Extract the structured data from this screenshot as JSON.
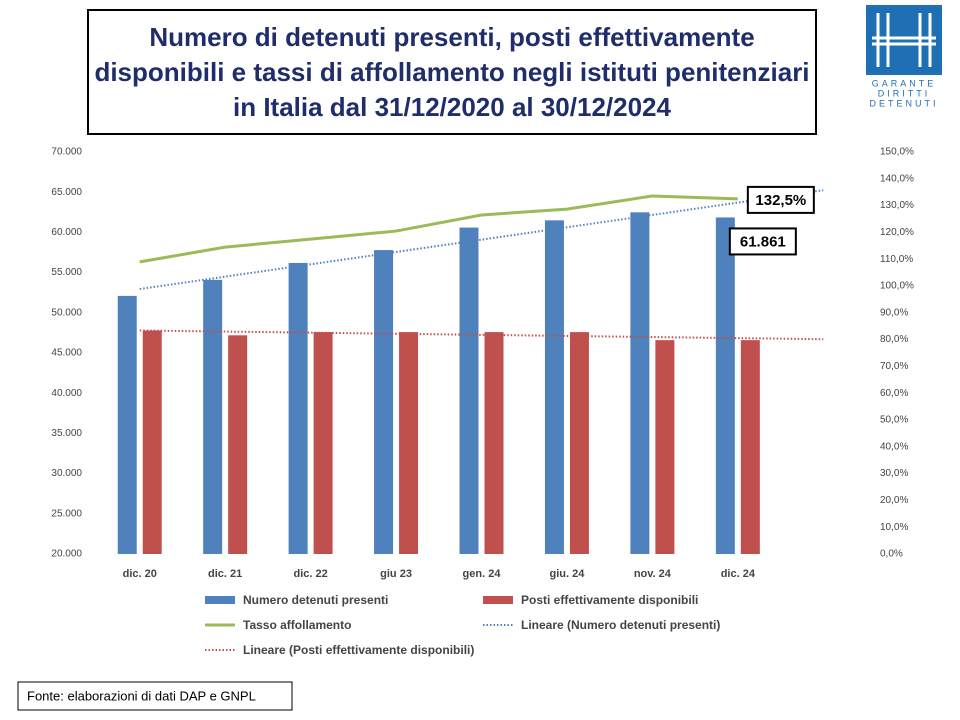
{
  "chart_data": {
    "type": "bar",
    "title": "Numero di detenuti presenti, posti effettivamente disponibili e tassi di affollamento negli istituti penitenziari in Italia dal 31/12/2020 al 30/12/2024",
    "categories": [
      "dic. 20",
      "dic. 21",
      "dic. 22",
      "giu 23",
      "gen. 24",
      "giu. 24",
      "nov. 24",
      "dic. 24"
    ],
    "series": [
      {
        "name": "Numero detenuti presenti",
        "color": "#4f81bd",
        "values": [
          52100,
          54100,
          56200,
          57800,
          60600,
          61500,
          62500,
          61861
        ],
        "value_labels": [
          null,
          null,
          null,
          null,
          null,
          null,
          null,
          "61.861"
        ]
      },
      {
        "name": "Posti effettivamente disponibili",
        "color": "#c0504d",
        "values": [
          47800,
          47200,
          47600,
          47600,
          47600,
          47600,
          46600,
          46600
        ]
      },
      {
        "name": "Tasso affollamento",
        "color": "#9bbb59",
        "type": "line",
        "axis": "y2",
        "values": [
          109,
          114.5,
          117.5,
          120.5,
          126.5,
          128.7,
          133.6,
          132.5
        ],
        "value_labels": [
          null,
          null,
          null,
          null,
          null,
          null,
          null,
          "132,5%"
        ]
      }
    ],
    "trendlines": [
      {
        "name": "Lineare (Numero detenuti presenti)",
        "series": 0,
        "color": "#4f81bd"
      },
      {
        "name": "Lineare (Posti effettivamente disponibili)",
        "series": 1,
        "color": "#c0504d"
      }
    ],
    "ylim": [
      20000,
      70000
    ],
    "yticks": [
      {
        "value": 20000,
        "label": "20.000"
      },
      {
        "value": 25000,
        "label": "25.000"
      },
      {
        "value": 30000,
        "label": "30.000"
      },
      {
        "value": 35000,
        "label": "35.000"
      },
      {
        "value": 40000,
        "label": "40.000"
      },
      {
        "value": 45000,
        "label": "45.000"
      },
      {
        "value": 50000,
        "label": "50.000"
      },
      {
        "value": 55000,
        "label": "55.000"
      },
      {
        "value": 60000,
        "label": "60.000"
      },
      {
        "value": 65000,
        "label": "65.000"
      },
      {
        "value": 70000,
        "label": "70.000"
      }
    ],
    "y2lim": [
      0,
      150
    ],
    "y2ticks": [
      {
        "value": 0,
        "label": "0,0%"
      },
      {
        "value": 10,
        "label": "10,0%"
      },
      {
        "value": 20,
        "label": "20,0%"
      },
      {
        "value": 30,
        "label": "30,0%"
      },
      {
        "value": 40,
        "label": "40,0%"
      },
      {
        "value": 50,
        "label": "50,0%"
      },
      {
        "value": 60,
        "label": "60,0%"
      },
      {
        "value": 70,
        "label": "70,0%"
      },
      {
        "value": 80,
        "label": "80,0%"
      },
      {
        "value": 90,
        "label": "90,0%"
      },
      {
        "value": 100,
        "label": "100,0%"
      },
      {
        "value": 110,
        "label": "110,0%"
      },
      {
        "value": 120,
        "label": "120,0%"
      },
      {
        "value": 130,
        "label": "130,0%"
      },
      {
        "value": 140,
        "label": "140,0%"
      },
      {
        "value": 150,
        "label": "150,0%"
      }
    ],
    "source": "Fonte: elaborazioni di dati DAP e GNPL",
    "logo": [
      "GARANTE",
      "DIRITTI",
      "DETENUTI"
    ]
  }
}
